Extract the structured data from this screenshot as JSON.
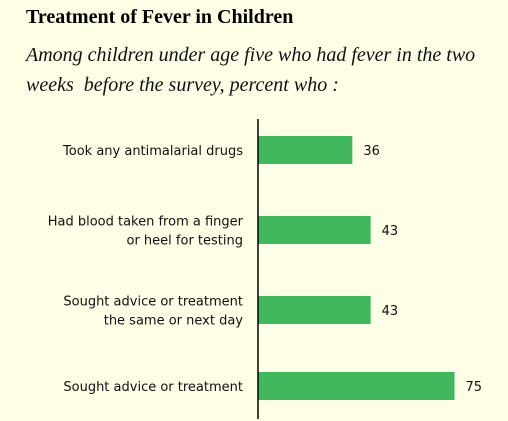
{
  "header": {
    "title": "Treatment of Fever in Children",
    "subtitle_line1": "Among children under age five who had fever in the two",
    "subtitle_line2": "weeks  before the survey, percent who :"
  },
  "chart_data": {
    "type": "bar",
    "orientation": "horizontal",
    "categories": [
      [
        "Took any antimalarial drugs"
      ],
      [
        "Had blood taken from a finger",
        "or heel for testing"
      ],
      [
        "Sought advice or treatment",
        "the same or next day"
      ],
      [
        "Sought advice or treatment"
      ]
    ],
    "values": [
      36,
      43,
      43,
      75
    ],
    "data_labels": [
      "36",
      "43",
      "43",
      "75"
    ],
    "bar_color": "#41b85e",
    "axis_color": "#000000",
    "xlim": [
      0,
      100
    ],
    "grid": false,
    "legend": "none"
  }
}
